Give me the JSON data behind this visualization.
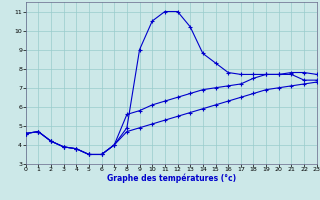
{
  "xlabel": "Graphe des températures (°c)",
  "bg_color": "#cce8e8",
  "grid_color": "#99cccc",
  "line_color": "#0000cc",
  "x_hours": [
    0,
    1,
    2,
    3,
    4,
    5,
    6,
    7,
    8,
    9,
    10,
    11,
    12,
    13,
    14,
    15,
    16,
    17,
    18,
    19,
    20,
    21,
    22,
    23
  ],
  "curve_main": [
    4.6,
    4.7,
    4.2,
    3.9,
    3.8,
    3.5,
    3.5,
    4.0,
    4.9,
    9.0,
    10.5,
    11.0,
    11.0,
    10.2,
    8.8,
    8.3,
    7.8,
    7.7,
    7.7,
    7.7,
    7.7,
    7.7,
    7.4,
    7.4
  ],
  "curve_upper": [
    4.6,
    4.7,
    4.2,
    3.9,
    3.8,
    3.5,
    3.5,
    4.0,
    5.6,
    5.8,
    6.1,
    6.3,
    6.5,
    6.7,
    6.9,
    7.0,
    7.1,
    7.2,
    7.5,
    7.7,
    7.7,
    7.8,
    7.8,
    7.7
  ],
  "curve_lower": [
    4.6,
    4.7,
    4.2,
    3.9,
    3.8,
    3.5,
    3.5,
    4.0,
    4.7,
    4.9,
    5.1,
    5.3,
    5.5,
    5.7,
    5.9,
    6.1,
    6.3,
    6.5,
    6.7,
    6.9,
    7.0,
    7.1,
    7.2,
    7.3
  ],
  "ylim": [
    3,
    11.5
  ],
  "xlim": [
    0,
    23
  ],
  "yticks": [
    3,
    4,
    5,
    6,
    7,
    8,
    9,
    10,
    11
  ],
  "xticks": [
    0,
    1,
    2,
    3,
    4,
    5,
    6,
    7,
    8,
    9,
    10,
    11,
    12,
    13,
    14,
    15,
    16,
    17,
    18,
    19,
    20,
    21,
    22,
    23
  ],
  "figsize": [
    3.2,
    2.0
  ],
  "dpi": 100
}
